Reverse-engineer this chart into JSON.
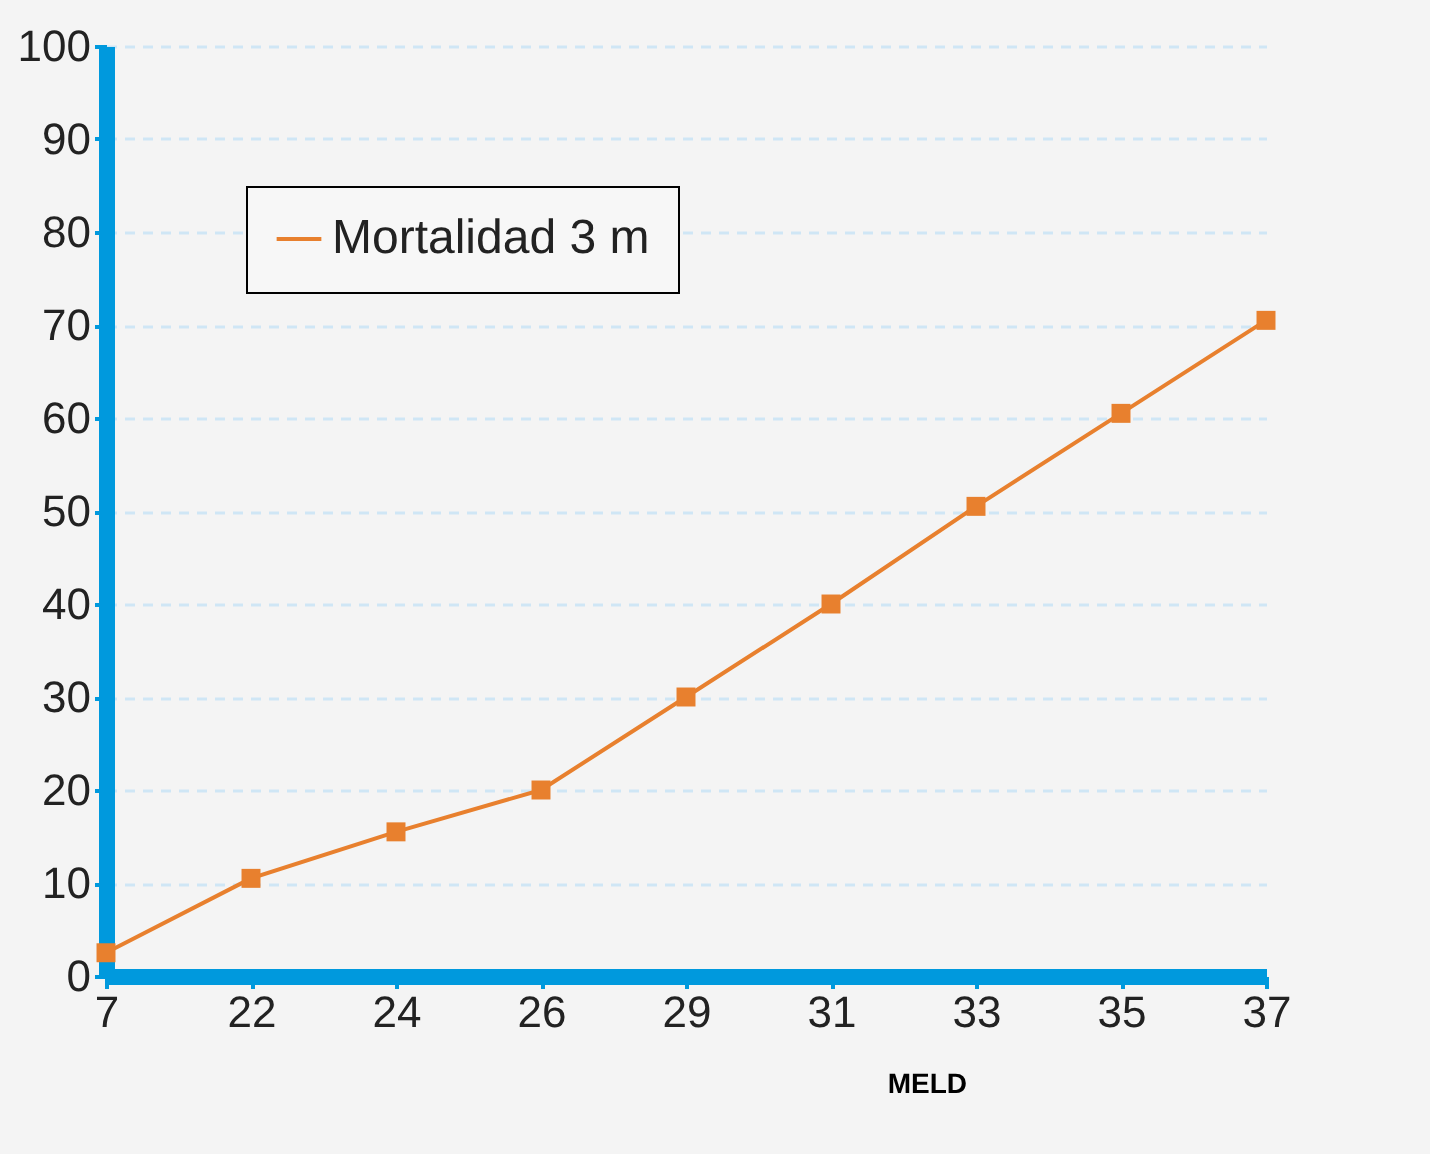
{
  "chart_data": {
    "type": "line",
    "xlabel": "MELD",
    "categories": [
      "7",
      "22",
      "24",
      "26",
      "29",
      "31",
      "33",
      "35",
      "37"
    ],
    "series": [
      {
        "name": "Mortalidad 3 m",
        "color": "#e8802e",
        "values": [
          2.5,
          10.5,
          15.5,
          20,
          30,
          40,
          50.5,
          60.5,
          70.5
        ]
      }
    ],
    "ylim": [
      0,
      100
    ],
    "yticks": [
      0,
      10,
      20,
      30,
      40,
      50,
      60,
      70,
      80,
      90,
      100
    ],
    "grid": "y",
    "legend": "top left",
    "marker": "square",
    "line_style": "solid"
  }
}
